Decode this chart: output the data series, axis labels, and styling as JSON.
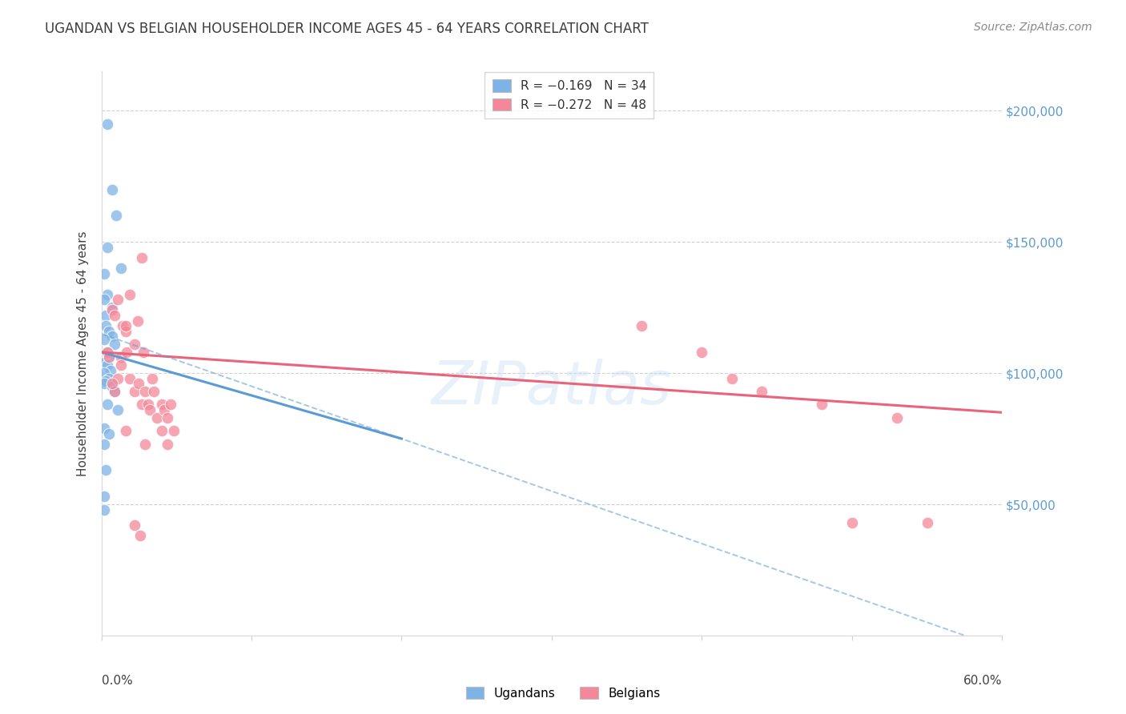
{
  "title": "UGANDAN VS BELGIAN HOUSEHOLDER INCOME AGES 45 - 64 YEARS CORRELATION CHART",
  "source": "Source: ZipAtlas.com",
  "ylabel": "Householder Income Ages 45 - 64 years",
  "ytick_values": [
    50000,
    100000,
    150000,
    200000
  ],
  "ylim": [
    0,
    215000
  ],
  "xlim": [
    0.0,
    0.6
  ],
  "watermark": "ZIPatlas",
  "legend_entries": [
    {
      "label": "R = −0.169   N = 34",
      "color": "#7eb3e8"
    },
    {
      "label": "R = −0.272   N = 48",
      "color": "#f4889a"
    }
  ],
  "ugandan_points": [
    [
      0.004,
      195000
    ],
    [
      0.007,
      170000
    ],
    [
      0.01,
      160000
    ],
    [
      0.004,
      148000
    ],
    [
      0.013,
      140000
    ],
    [
      0.002,
      138000
    ],
    [
      0.004,
      130000
    ],
    [
      0.002,
      128000
    ],
    [
      0.007,
      125000
    ],
    [
      0.003,
      122000
    ],
    [
      0.003,
      118000
    ],
    [
      0.005,
      116000
    ],
    [
      0.007,
      114000
    ],
    [
      0.002,
      113000
    ],
    [
      0.009,
      111000
    ],
    [
      0.004,
      108000
    ],
    [
      0.005,
      106000
    ],
    [
      0.002,
      104000
    ],
    [
      0.004,
      103000
    ],
    [
      0.006,
      101000
    ],
    [
      0.002,
      100000
    ],
    [
      0.005,
      98000
    ],
    [
      0.003,
      97000
    ],
    [
      0.002,
      96000
    ],
    [
      0.007,
      95000
    ],
    [
      0.009,
      93000
    ],
    [
      0.004,
      88000
    ],
    [
      0.011,
      86000
    ],
    [
      0.002,
      79000
    ],
    [
      0.005,
      77000
    ],
    [
      0.002,
      73000
    ],
    [
      0.003,
      63000
    ],
    [
      0.002,
      53000
    ],
    [
      0.002,
      48000
    ]
  ],
  "belgian_points": [
    [
      0.004,
      108000
    ],
    [
      0.005,
      106000
    ],
    [
      0.007,
      124000
    ],
    [
      0.009,
      122000
    ],
    [
      0.011,
      128000
    ],
    [
      0.013,
      106000
    ],
    [
      0.014,
      118000
    ],
    [
      0.016,
      116000
    ],
    [
      0.017,
      108000
    ],
    [
      0.019,
      98000
    ],
    [
      0.022,
      111000
    ],
    [
      0.022,
      93000
    ],
    [
      0.025,
      96000
    ],
    [
      0.027,
      88000
    ],
    [
      0.027,
      144000
    ],
    [
      0.028,
      108000
    ],
    [
      0.029,
      93000
    ],
    [
      0.029,
      73000
    ],
    [
      0.031,
      88000
    ],
    [
      0.032,
      86000
    ],
    [
      0.034,
      98000
    ],
    [
      0.035,
      93000
    ],
    [
      0.037,
      83000
    ],
    [
      0.04,
      88000
    ],
    [
      0.04,
      78000
    ],
    [
      0.042,
      86000
    ],
    [
      0.044,
      83000
    ],
    [
      0.044,
      73000
    ],
    [
      0.046,
      88000
    ],
    [
      0.048,
      78000
    ],
    [
      0.016,
      118000
    ],
    [
      0.013,
      103000
    ],
    [
      0.011,
      98000
    ],
    [
      0.009,
      93000
    ],
    [
      0.007,
      96000
    ],
    [
      0.019,
      130000
    ],
    [
      0.024,
      120000
    ],
    [
      0.016,
      78000
    ],
    [
      0.022,
      42000
    ],
    [
      0.026,
      38000
    ],
    [
      0.36,
      118000
    ],
    [
      0.4,
      108000
    ],
    [
      0.42,
      98000
    ],
    [
      0.44,
      93000
    ],
    [
      0.48,
      88000
    ],
    [
      0.5,
      43000
    ],
    [
      0.55,
      43000
    ],
    [
      0.53,
      83000
    ]
  ],
  "ugandan_line_color": "#5b9bd5",
  "belgian_line_color": "#e8647a",
  "ugandan_line_x": [
    0.0,
    0.2
  ],
  "ugandan_line_y": [
    108000,
    75000
  ],
  "belgian_line_x": [
    0.0,
    0.6
  ],
  "belgian_line_y": [
    108000,
    85000
  ],
  "dashed_line_x": [
    0.0,
    0.6
  ],
  "dashed_line_y": [
    115000,
    -5000
  ],
  "title_color": "#3c3c3c",
  "source_color": "#888888",
  "tick_color": "#5b9bd5",
  "grid_color": "#d0d0d0",
  "ugandan_scatter_color": "#7eb3e8",
  "belgian_scatter_color": "#f4889a",
  "background_color": "#ffffff"
}
